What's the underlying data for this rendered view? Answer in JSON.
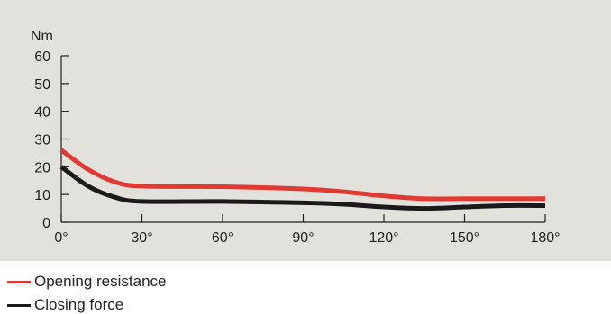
{
  "chart_data": {
    "type": "line",
    "ylabel": "Nm",
    "xlabel": "",
    "title": "",
    "x_ticks": [
      0,
      30,
      60,
      90,
      120,
      150,
      180
    ],
    "x_tick_labels": [
      "0°",
      "30°",
      "60°",
      "90°",
      "120°",
      "150°",
      "180°"
    ],
    "y_ticks": [
      0,
      10,
      20,
      30,
      40,
      50,
      60
    ],
    "y_tick_labels": [
      "0",
      "10",
      "20",
      "30",
      "40",
      "50",
      "60"
    ],
    "xlim": [
      0,
      180
    ],
    "ylim": [
      0,
      60
    ],
    "grid": false,
    "legend_position": "bottom-left",
    "series": [
      {
        "name": "Opening resistance",
        "color": "#e03a33",
        "x": [
          0,
          10,
          20,
          30,
          60,
          90,
          105,
          120,
          135,
          150,
          165,
          180
        ],
        "y": [
          26,
          19,
          14.5,
          13,
          12.8,
          12,
          11,
          9.5,
          8.5,
          8.5,
          8.5,
          8.5
        ]
      },
      {
        "name": "Closing force",
        "color": "#1a1a1a",
        "x": [
          0,
          10,
          20,
          30,
          60,
          90,
          105,
          120,
          135,
          150,
          165,
          180
        ],
        "y": [
          20,
          13,
          9,
          7.5,
          7.5,
          7,
          6.5,
          5.5,
          5,
          5.5,
          6,
          6
        ]
      }
    ]
  },
  "colors": {
    "panel_background": "#e3e1db",
    "axis": "#222222"
  }
}
